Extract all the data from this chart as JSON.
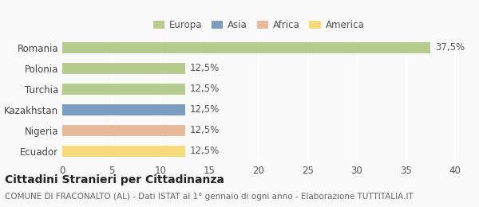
{
  "countries": [
    "Romania",
    "Polonia",
    "Turchia",
    "Kazakhstan",
    "Nigeria",
    "Ecuador"
  ],
  "values": [
    37.5,
    12.5,
    12.5,
    12.5,
    12.5,
    12.5
  ],
  "bar_colors": [
    "#b5cc8e",
    "#b5cc8e",
    "#b5cc8e",
    "#7b9dc0",
    "#e8b89a",
    "#f5d97a"
  ],
  "label_texts": [
    "37,5%",
    "12,5%",
    "12,5%",
    "12,5%",
    "12,5%",
    "12,5%"
  ],
  "xlim": [
    0,
    40
  ],
  "xticks": [
    0,
    5,
    10,
    15,
    20,
    25,
    30,
    35,
    40
  ],
  "legend_labels": [
    "Europa",
    "Asia",
    "Africa",
    "America"
  ],
  "legend_colors": [
    "#b5cc8e",
    "#7b9dc0",
    "#e8b89a",
    "#f5d97a"
  ],
  "title": "Cittadini Stranieri per Cittadinanza",
  "subtitle": "COMUNE DI FRACONALTO (AL) - Dati ISTAT al 1° gennaio di ogni anno - Elaborazione TUTTITALIA.IT",
  "background_color": "#f9f9f9",
  "grid_color": "#ffffff",
  "bar_height": 0.55,
  "title_fontsize": 10,
  "subtitle_fontsize": 7.5,
  "tick_fontsize": 8.5,
  "label_fontsize": 8.5,
  "legend_fontsize": 8.5
}
